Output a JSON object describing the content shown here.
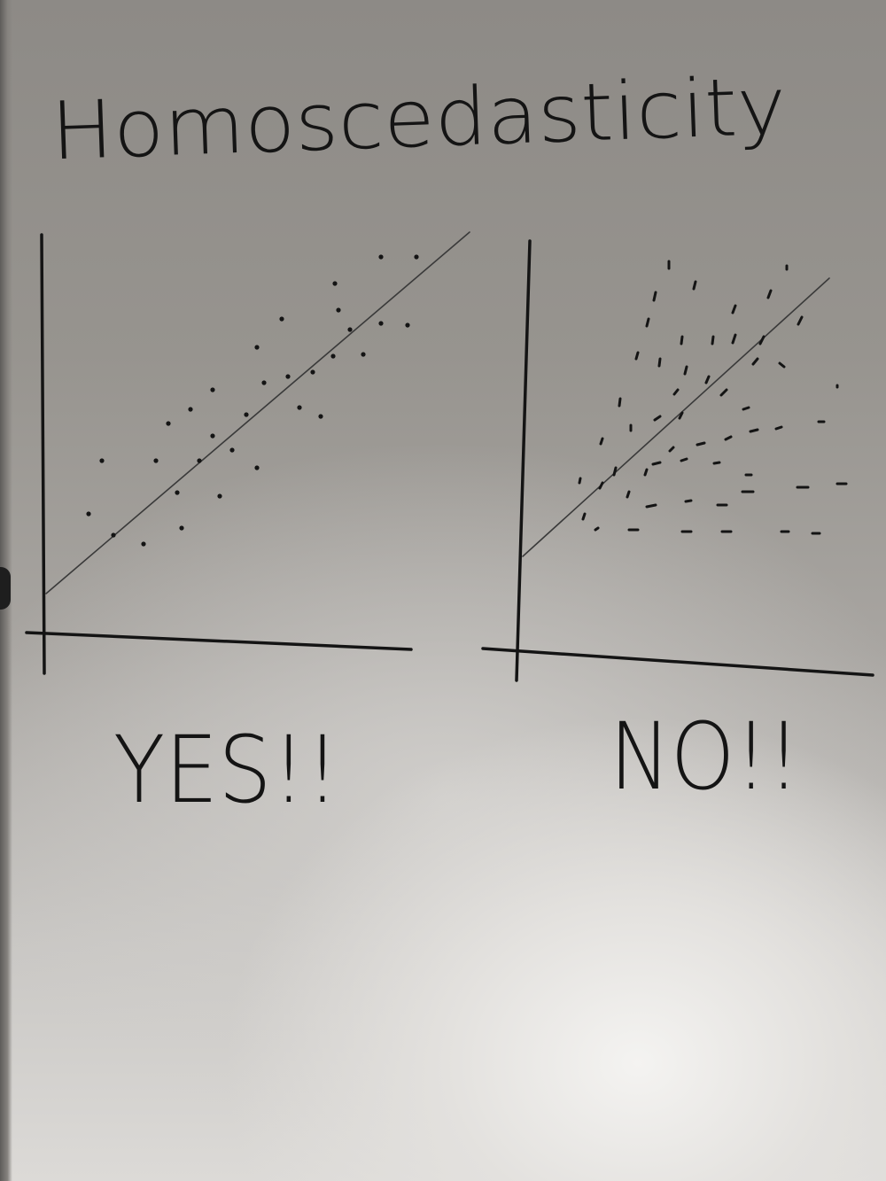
{
  "title": "Homoscedasticity",
  "panels": [
    {
      "caption": "YES!!"
    },
    {
      "caption": "NO!!"
    }
  ],
  "colors": {
    "ink": "#141414",
    "board": "#9a9794"
  }
}
